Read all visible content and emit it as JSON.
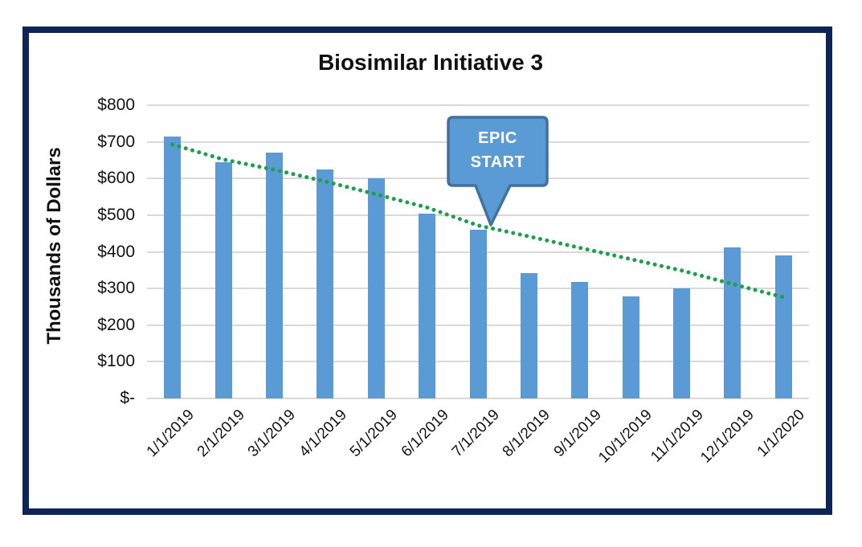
{
  "frame": {
    "border_color": "#0d2456",
    "background": "#ffffff"
  },
  "title": "Biosimilar Initiative 3",
  "y_axis_title": "Thousands of Dollars",
  "callout": {
    "line1": "EPIC",
    "line2": "START",
    "fill": "#5b9bd5",
    "border_color": "#41719c",
    "text_color": "#ffffff",
    "points_to": "7/1/2019"
  },
  "chart_data": {
    "type": "bar",
    "title": "Biosimilar Initiative 3",
    "xlabel": "",
    "ylabel": "Thousands of Dollars",
    "ylim": [
      0,
      800
    ],
    "y_tick_step": 100,
    "y_tick_labels": [
      "$-",
      "$100",
      "$200",
      "$300",
      "$400",
      "$500",
      "$600",
      "$700",
      "$800"
    ],
    "grid": true,
    "grid_color": "#d9d9d9",
    "legend": "none",
    "categories": [
      "1/1/2019",
      "2/1/2019",
      "3/1/2019",
      "4/1/2019",
      "5/1/2019",
      "6/1/2019",
      "7/1/2019",
      "8/1/2019",
      "9/1/2019",
      "10/1/2019",
      "11/1/2019",
      "12/1/2019",
      "1/1/2020"
    ],
    "series": [
      {
        "name": "bars",
        "type": "bar",
        "color": "#5b9bd5",
        "values": [
          715,
          645,
          670,
          625,
          600,
          505,
          460,
          343,
          317,
          279,
          300,
          412,
          390
        ]
      },
      {
        "name": "trendline",
        "type": "dotted-line",
        "color": "#1f9e4e",
        "values": [
          693,
          652,
          624,
          592,
          557,
          521,
          472,
          442,
          411,
          380,
          349,
          312,
          276
        ]
      }
    ],
    "annotation": {
      "text": "EPIC START",
      "shape": "down-arrow-callout",
      "points_to_category": "7/1/2019"
    }
  }
}
